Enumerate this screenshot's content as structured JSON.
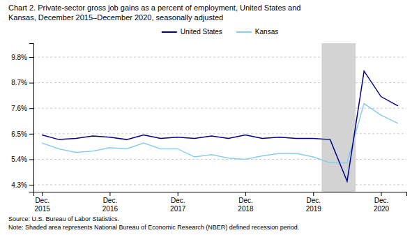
{
  "chart_data": {
    "type": "line",
    "title": "Chart 2. Private-sector gross job gains as a percent of employment, United States and\nKansas,  December 2015–December 2020, seasonally adjusted",
    "annotations": [
      "Source: U.S. Bureau of Labor Statistics.\nNote: Shaded area represents National Bureau of Economic Research (NBER)  defined recession period."
    ],
    "categories": [
      "Dec.\n2015",
      null,
      null,
      null,
      "Dec.\n2016",
      null,
      null,
      null,
      "Dec.\n2017",
      null,
      null,
      null,
      "Dec.\n2018",
      null,
      null,
      null,
      "Dec.\n2019",
      null,
      null,
      null,
      "Dec.\n2020",
      null
    ],
    "series": [
      {
        "name": "United States",
        "color": "#00008B",
        "values": [
          6.45,
          6.25,
          6.3,
          6.4,
          6.35,
          6.25,
          6.45,
          6.3,
          6.35,
          6.3,
          6.4,
          6.3,
          6.45,
          6.3,
          6.35,
          6.3,
          6.3,
          6.25,
          4.45,
          9.2,
          8.1,
          7.7
        ]
      },
      {
        "name": "Kansas",
        "color": "#87CEEB",
        "values": [
          6.1,
          5.85,
          5.7,
          5.75,
          5.9,
          5.85,
          6.1,
          5.85,
          5.85,
          5.5,
          5.6,
          5.45,
          5.4,
          5.55,
          5.65,
          5.65,
          5.5,
          5.25,
          5.25,
          7.8,
          7.3,
          6.95
        ]
      }
    ],
    "shaded_region": {
      "start": 16.5,
      "end": 18.5,
      "color": "#D3D3D3"
    },
    "ylim": [
      4.0,
      10.4
    ],
    "yticks": [
      {
        "value": 4.3,
        "label": "4.3%"
      },
      {
        "value": 5.4,
        "label": "5.4%"
      },
      {
        "value": 6.5,
        "label": "6.5%"
      },
      {
        "value": 7.6,
        "label": "7.6%"
      },
      {
        "value": 8.7,
        "label": "8.7%"
      },
      {
        "value": 9.8,
        "label": "9.8%"
      }
    ],
    "grid": true,
    "legend": "top"
  }
}
